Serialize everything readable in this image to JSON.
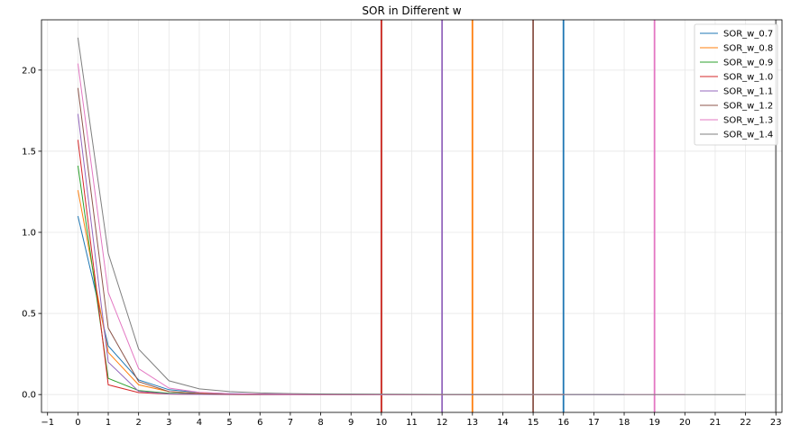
{
  "chart_data": {
    "type": "line",
    "title": "SOR in Different w",
    "xlabel": "",
    "ylabel": "",
    "xlim": [
      -1.2,
      23.2
    ],
    "ylim": [
      -0.11,
      2.31
    ],
    "xticks": [
      -1,
      0,
      1,
      2,
      3,
      4,
      5,
      6,
      7,
      8,
      9,
      10,
      11,
      12,
      13,
      14,
      15,
      16,
      17,
      18,
      19,
      20,
      21,
      22,
      23
    ],
    "yticks": [
      0.0,
      0.5,
      1.0,
      1.5,
      2.0
    ],
    "ytick_labels": [
      "0.0",
      "0.5",
      "1.0",
      "1.5",
      "2.0"
    ],
    "grid": true,
    "legend_position": "top-right",
    "series": [
      {
        "name": "SOR_w_0.7",
        "color": "#1f77b4",
        "converged_at": 16,
        "x": [
          0,
          1,
          2,
          3,
          4,
          5,
          6,
          7,
          8,
          9,
          10,
          11,
          12,
          13,
          14,
          15,
          16,
          17,
          18
        ],
        "y": [
          1.1,
          0.3,
          0.09,
          0.03,
          0.012,
          0.006,
          0.003,
          0.002,
          0.001,
          0.0005,
          0.0003,
          0.0002,
          0.0001,
          0.0001,
          0.0001,
          0.0,
          0.0,
          0.0,
          0.0
        ]
      },
      {
        "name": "SOR_w_0.8",
        "color": "#ff7f0e",
        "converged_at": 13,
        "x": [
          0,
          1,
          2,
          3,
          4,
          5,
          6,
          7,
          8,
          9,
          10,
          11,
          12,
          13,
          14,
          15,
          16
        ],
        "y": [
          1.26,
          0.26,
          0.06,
          0.018,
          0.007,
          0.003,
          0.0015,
          0.0008,
          0.0004,
          0.0002,
          0.0001,
          0.0001,
          0.0,
          0.0,
          0.0,
          0.0,
          0.0
        ]
      },
      {
        "name": "SOR_w_0.9",
        "color": "#2ca02c",
        "converged_at": 10,
        "x": [
          0,
          1,
          2,
          3,
          4,
          5,
          6,
          7,
          8,
          9,
          10,
          11,
          12,
          13,
          14
        ],
        "y": [
          1.41,
          0.1,
          0.025,
          0.008,
          0.003,
          0.0012,
          0.0005,
          0.0002,
          0.0001,
          0.0,
          0.0,
          0.0,
          0.0,
          0.0,
          0.0
        ]
      },
      {
        "name": "SOR_w_1.0",
        "color": "#d62728",
        "converged_at": 10,
        "x": [
          0,
          1,
          2,
          3,
          4,
          5,
          6,
          7,
          8,
          9,
          10,
          11,
          12
        ],
        "y": [
          1.57,
          0.06,
          0.012,
          0.003,
          0.001,
          0.0003,
          0.0001,
          0.0,
          0.0,
          0.0,
          0.0,
          0.0,
          0.0
        ]
      },
      {
        "name": "SOR_w_1.1",
        "color": "#9467bd",
        "converged_at": 12,
        "x": [
          0,
          1,
          2,
          3,
          4,
          5,
          6,
          7,
          8,
          9,
          10,
          11,
          12,
          13
        ],
        "y": [
          1.73,
          0.2,
          0.02,
          0.004,
          0.001,
          0.0003,
          0.0001,
          0.0,
          0.0,
          0.0,
          0.0,
          0.0,
          0.0,
          0.0
        ]
      },
      {
        "name": "SOR_w_1.2",
        "color": "#8c564b",
        "converged_at": 15,
        "x": [
          0,
          1,
          2,
          3,
          4,
          5,
          6,
          7,
          8,
          9,
          10,
          11,
          12,
          13,
          14,
          15,
          16
        ],
        "y": [
          1.89,
          0.41,
          0.08,
          0.018,
          0.005,
          0.0015,
          0.0005,
          0.0002,
          0.0001,
          0.0,
          0.0,
          0.0,
          0.0,
          0.0,
          0.0,
          0.0,
          0.0
        ]
      },
      {
        "name": "SOR_w_1.3",
        "color": "#e377c2",
        "converged_at": 19,
        "x": [
          0,
          1,
          2,
          3,
          4,
          5,
          6,
          7,
          8,
          9,
          10,
          11,
          12,
          13,
          14,
          15,
          16,
          17,
          18,
          19,
          20
        ],
        "y": [
          2.04,
          0.63,
          0.16,
          0.04,
          0.013,
          0.005,
          0.002,
          0.001,
          0.0005,
          0.0002,
          0.0001,
          0.0,
          0.0,
          0.0,
          0.0,
          0.0,
          0.0,
          0.0,
          0.0,
          0.0,
          0.0
        ]
      },
      {
        "name": "SOR_w_1.4",
        "color": "#7f7f7f",
        "converged_at": 23,
        "x": [
          0,
          1,
          2,
          3,
          4,
          5,
          6,
          7,
          8,
          9,
          10,
          11,
          12,
          13,
          14,
          15,
          16,
          17,
          18,
          19,
          20,
          21,
          22
        ],
        "y": [
          2.2,
          0.87,
          0.28,
          0.085,
          0.035,
          0.018,
          0.01,
          0.006,
          0.004,
          0.003,
          0.002,
          0.0015,
          0.001,
          0.0007,
          0.0005,
          0.0004,
          0.0003,
          0.0002,
          0.0001,
          0.0001,
          0.0,
          0.0,
          0.0
        ]
      }
    ]
  }
}
